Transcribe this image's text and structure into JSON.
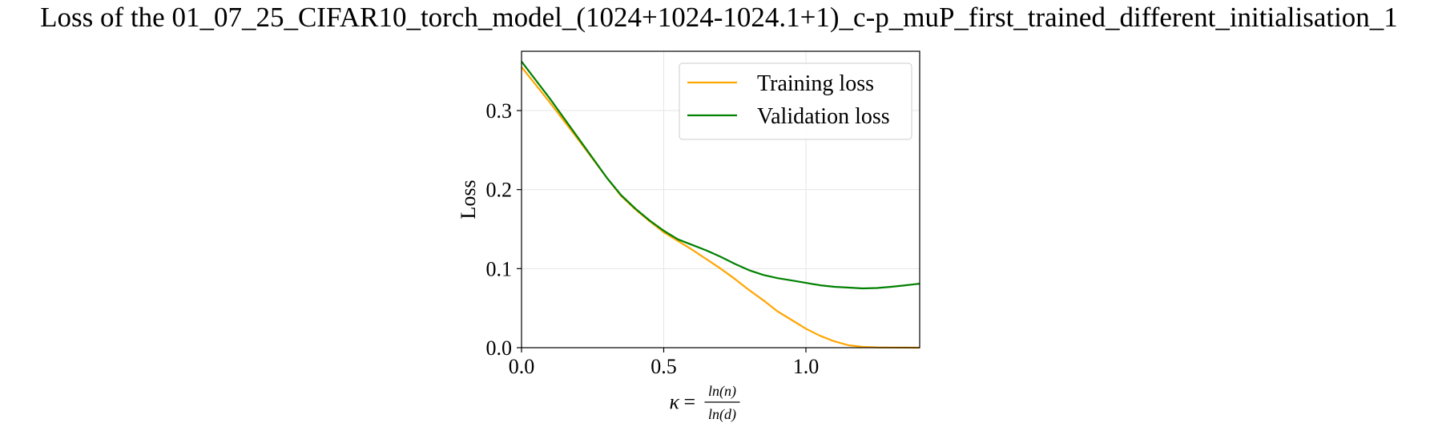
{
  "chart_data": {
    "type": "line",
    "title": "Loss of the 01_07_25_CIFAR10_torch_model_(1024+1024-1024.1+1)_c-p_muP_first_trained_different_initialisation_1",
    "ylabel": "Loss",
    "xlabel": {
      "symbol": "κ",
      "equals": "=",
      "numerator": "ln(n)",
      "denominator": "ln(d)"
    },
    "xlim": [
      0.0,
      1.4
    ],
    "ylim": [
      0.0,
      0.375
    ],
    "x_ticks": [
      0.0,
      0.5,
      1.0
    ],
    "x_tick_labels": [
      "0.0",
      "0.5",
      "1.0"
    ],
    "y_ticks": [
      0.0,
      0.1,
      0.2,
      0.3
    ],
    "y_tick_labels": [
      "0.0",
      "0.1",
      "0.2",
      "0.3"
    ],
    "grid": true,
    "legend_position": "top-right",
    "series": [
      {
        "name": "Training loss",
        "color": "#ffa500",
        "x": [
          0.0,
          0.1,
          0.2,
          0.3,
          0.35,
          0.4,
          0.45,
          0.5,
          0.55,
          0.6,
          0.65,
          0.7,
          0.75,
          0.8,
          0.85,
          0.9,
          0.95,
          1.0,
          1.05,
          1.1,
          1.15,
          1.2,
          1.25,
          1.3,
          1.35,
          1.4
        ],
        "y": [
          0.355,
          0.31,
          0.263,
          0.215,
          0.192,
          0.175,
          0.16,
          0.146,
          0.135,
          0.124,
          0.112,
          0.1,
          0.087,
          0.073,
          0.06,
          0.046,
          0.035,
          0.024,
          0.015,
          0.008,
          0.003,
          0.001,
          0.0004,
          0.0002,
          0.0001,
          0.0
        ]
      },
      {
        "name": "Validation loss",
        "color": "#008000",
        "x": [
          0.0,
          0.1,
          0.2,
          0.3,
          0.35,
          0.4,
          0.45,
          0.5,
          0.55,
          0.6,
          0.65,
          0.7,
          0.75,
          0.8,
          0.85,
          0.9,
          0.95,
          1.0,
          1.05,
          1.1,
          1.15,
          1.2,
          1.25,
          1.3,
          1.35,
          1.4
        ],
        "y": [
          0.362,
          0.315,
          0.265,
          0.215,
          0.193,
          0.176,
          0.161,
          0.148,
          0.137,
          0.13,
          0.123,
          0.115,
          0.106,
          0.098,
          0.092,
          0.088,
          0.085,
          0.082,
          0.079,
          0.077,
          0.076,
          0.075,
          0.0755,
          0.077,
          0.079,
          0.081
        ]
      }
    ]
  }
}
